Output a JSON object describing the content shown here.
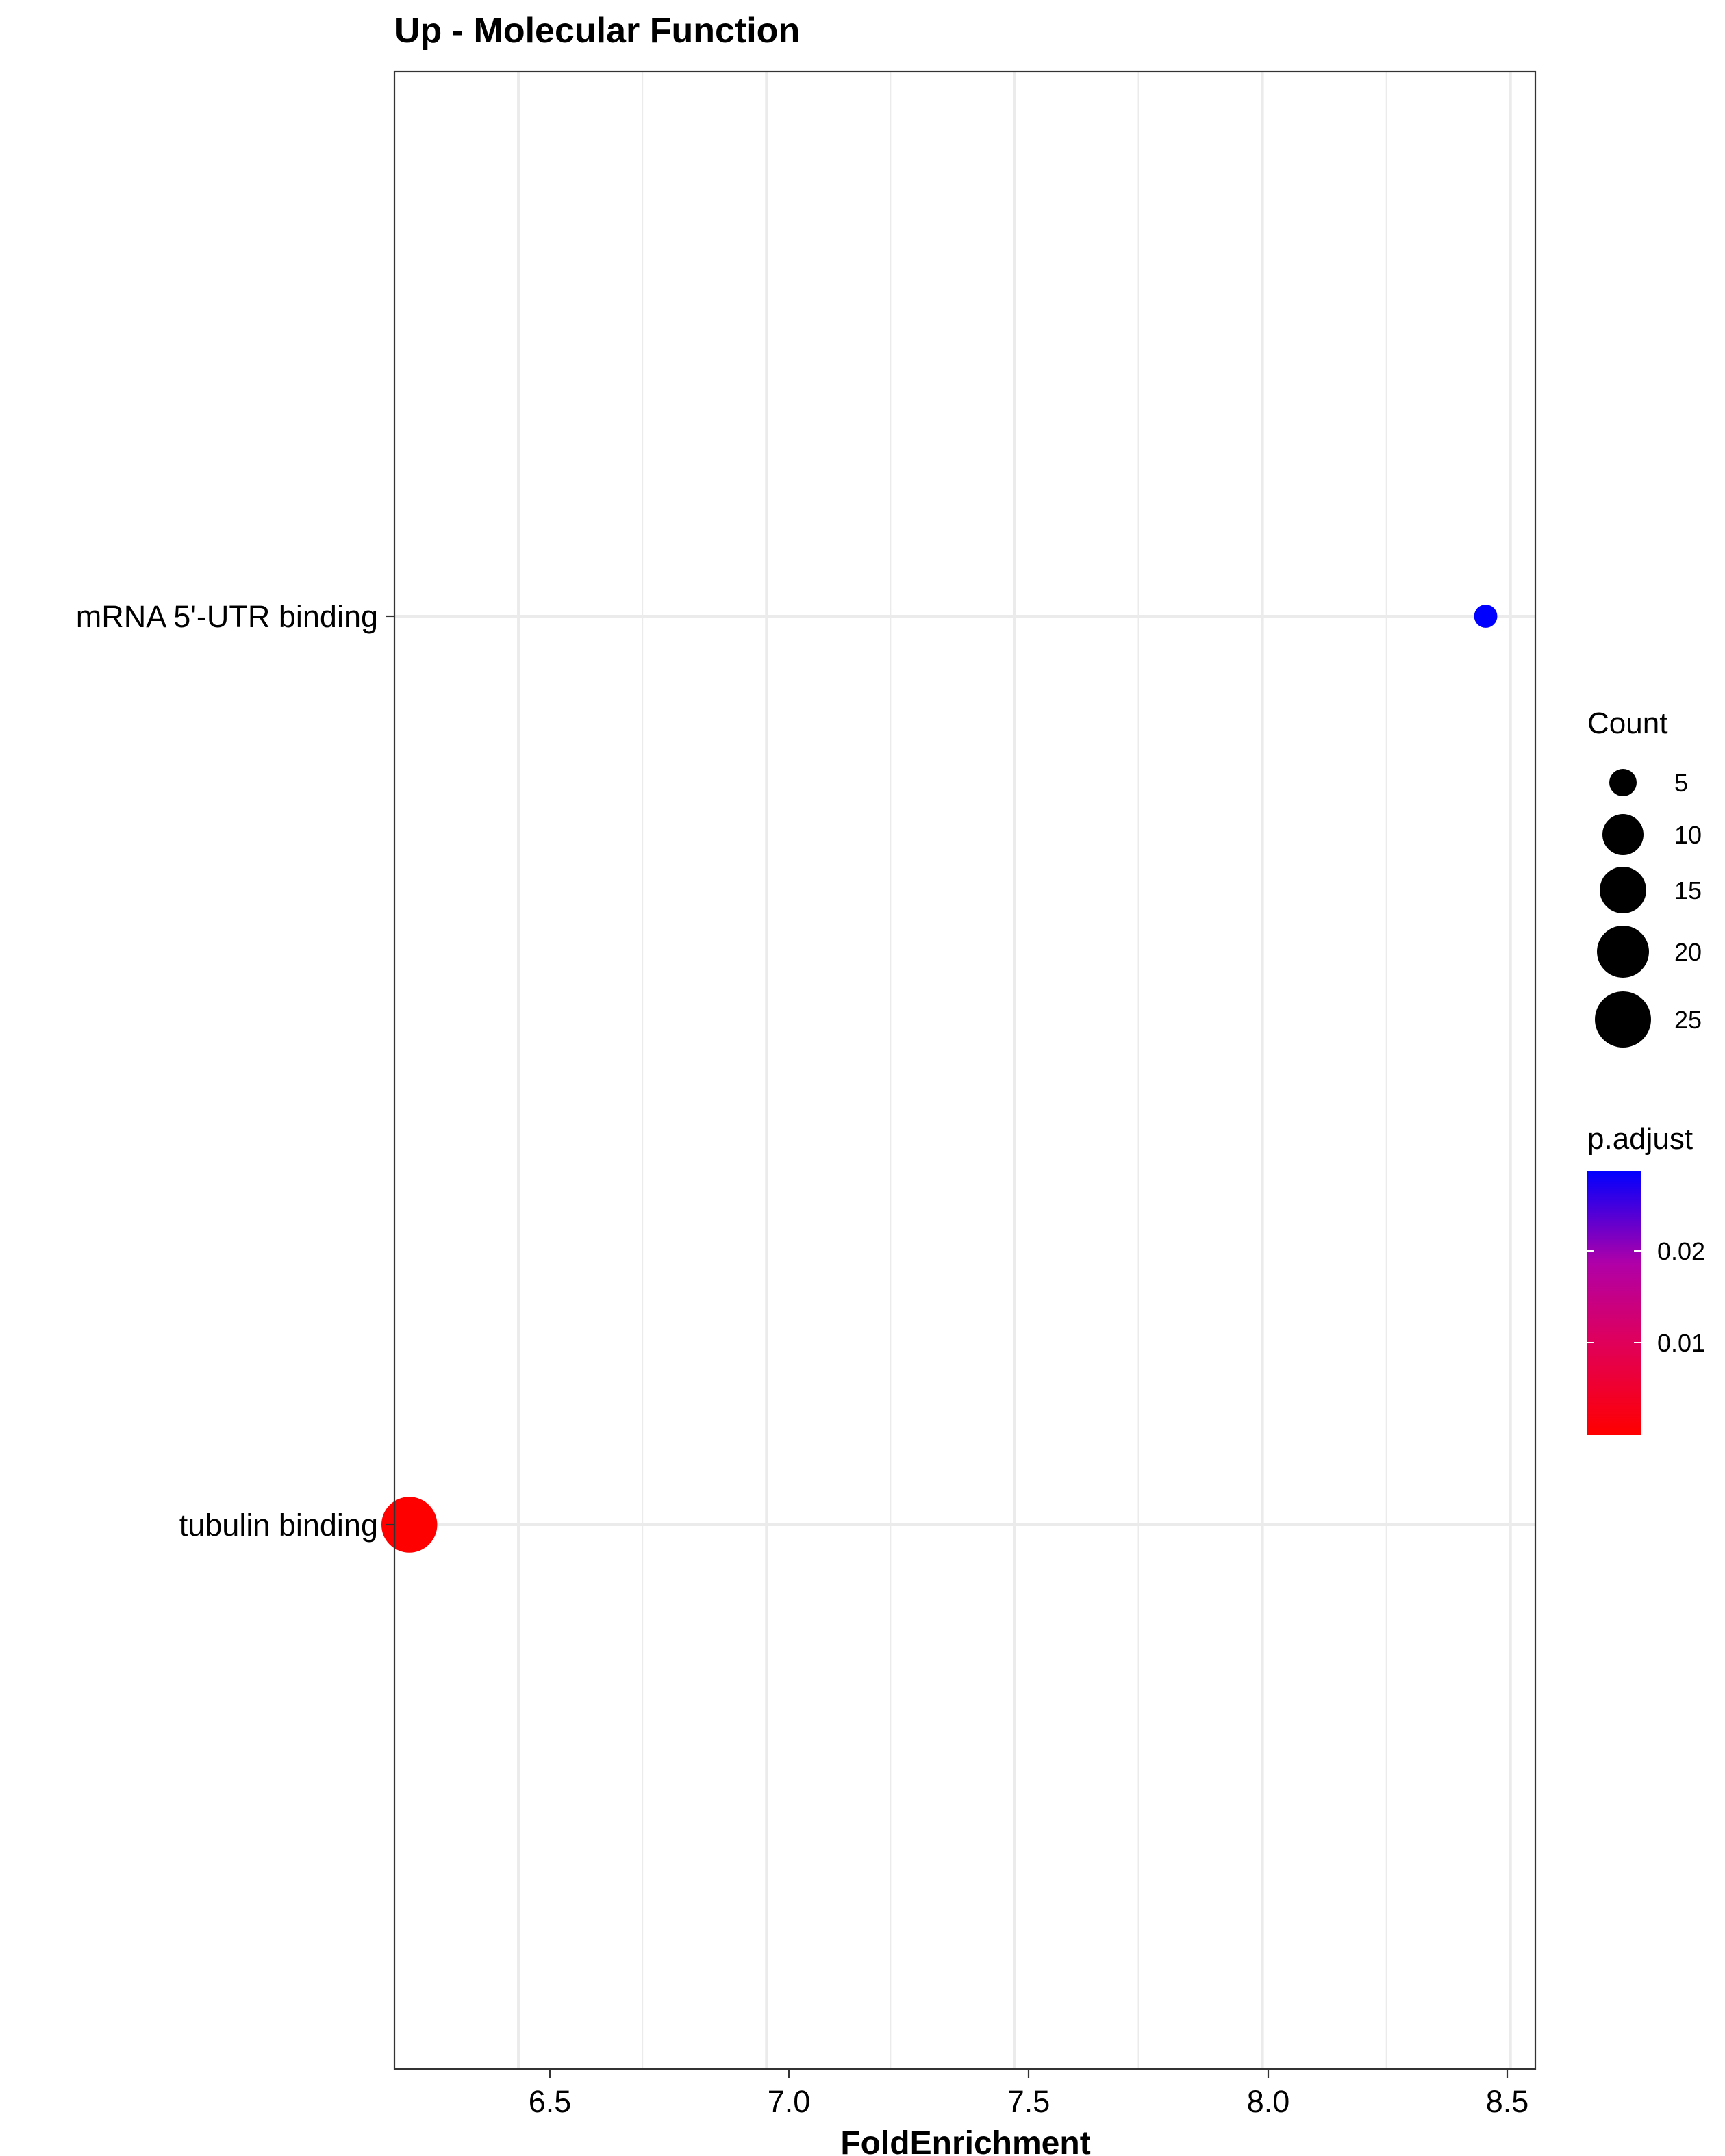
{
  "chart_data": {
    "type": "scatter",
    "title": "Up - Molecular Function",
    "xlabel": "FoldEnrichment",
    "ylabel": "",
    "xlim": [
      6.25,
      8.55
    ],
    "x_ticks": [
      "6.5",
      "7.0",
      "7.5",
      "8.0",
      "8.5"
    ],
    "categories": [
      "mRNA 5'-UTR binding",
      "tubulin binding"
    ],
    "points": [
      {
        "category": "mRNA 5'-UTR binding",
        "fold_enrichment": 8.45,
        "count": 2,
        "p_adjust": 0.028,
        "color": "#0000FF"
      },
      {
        "category": "tubulin binding",
        "fold_enrichment": 6.28,
        "count": 27,
        "p_adjust": 0.0005,
        "color": "#FF0000"
      }
    ],
    "grid": true,
    "legend": {
      "placement": "right",
      "size": {
        "title": "Count",
        "values": [
          5,
          10,
          15,
          20,
          25
        ],
        "labels": [
          "5",
          "10",
          "15",
          "20",
          "25"
        ]
      },
      "color": {
        "title": "p.adjust",
        "range": [
          0.0003,
          0.0287
        ],
        "low_color": "#FF0000",
        "high_color": "#0000FF",
        "tick_values": [
          0.02,
          0.01
        ],
        "tick_labels": [
          "0.02",
          "0.01"
        ]
      }
    }
  }
}
